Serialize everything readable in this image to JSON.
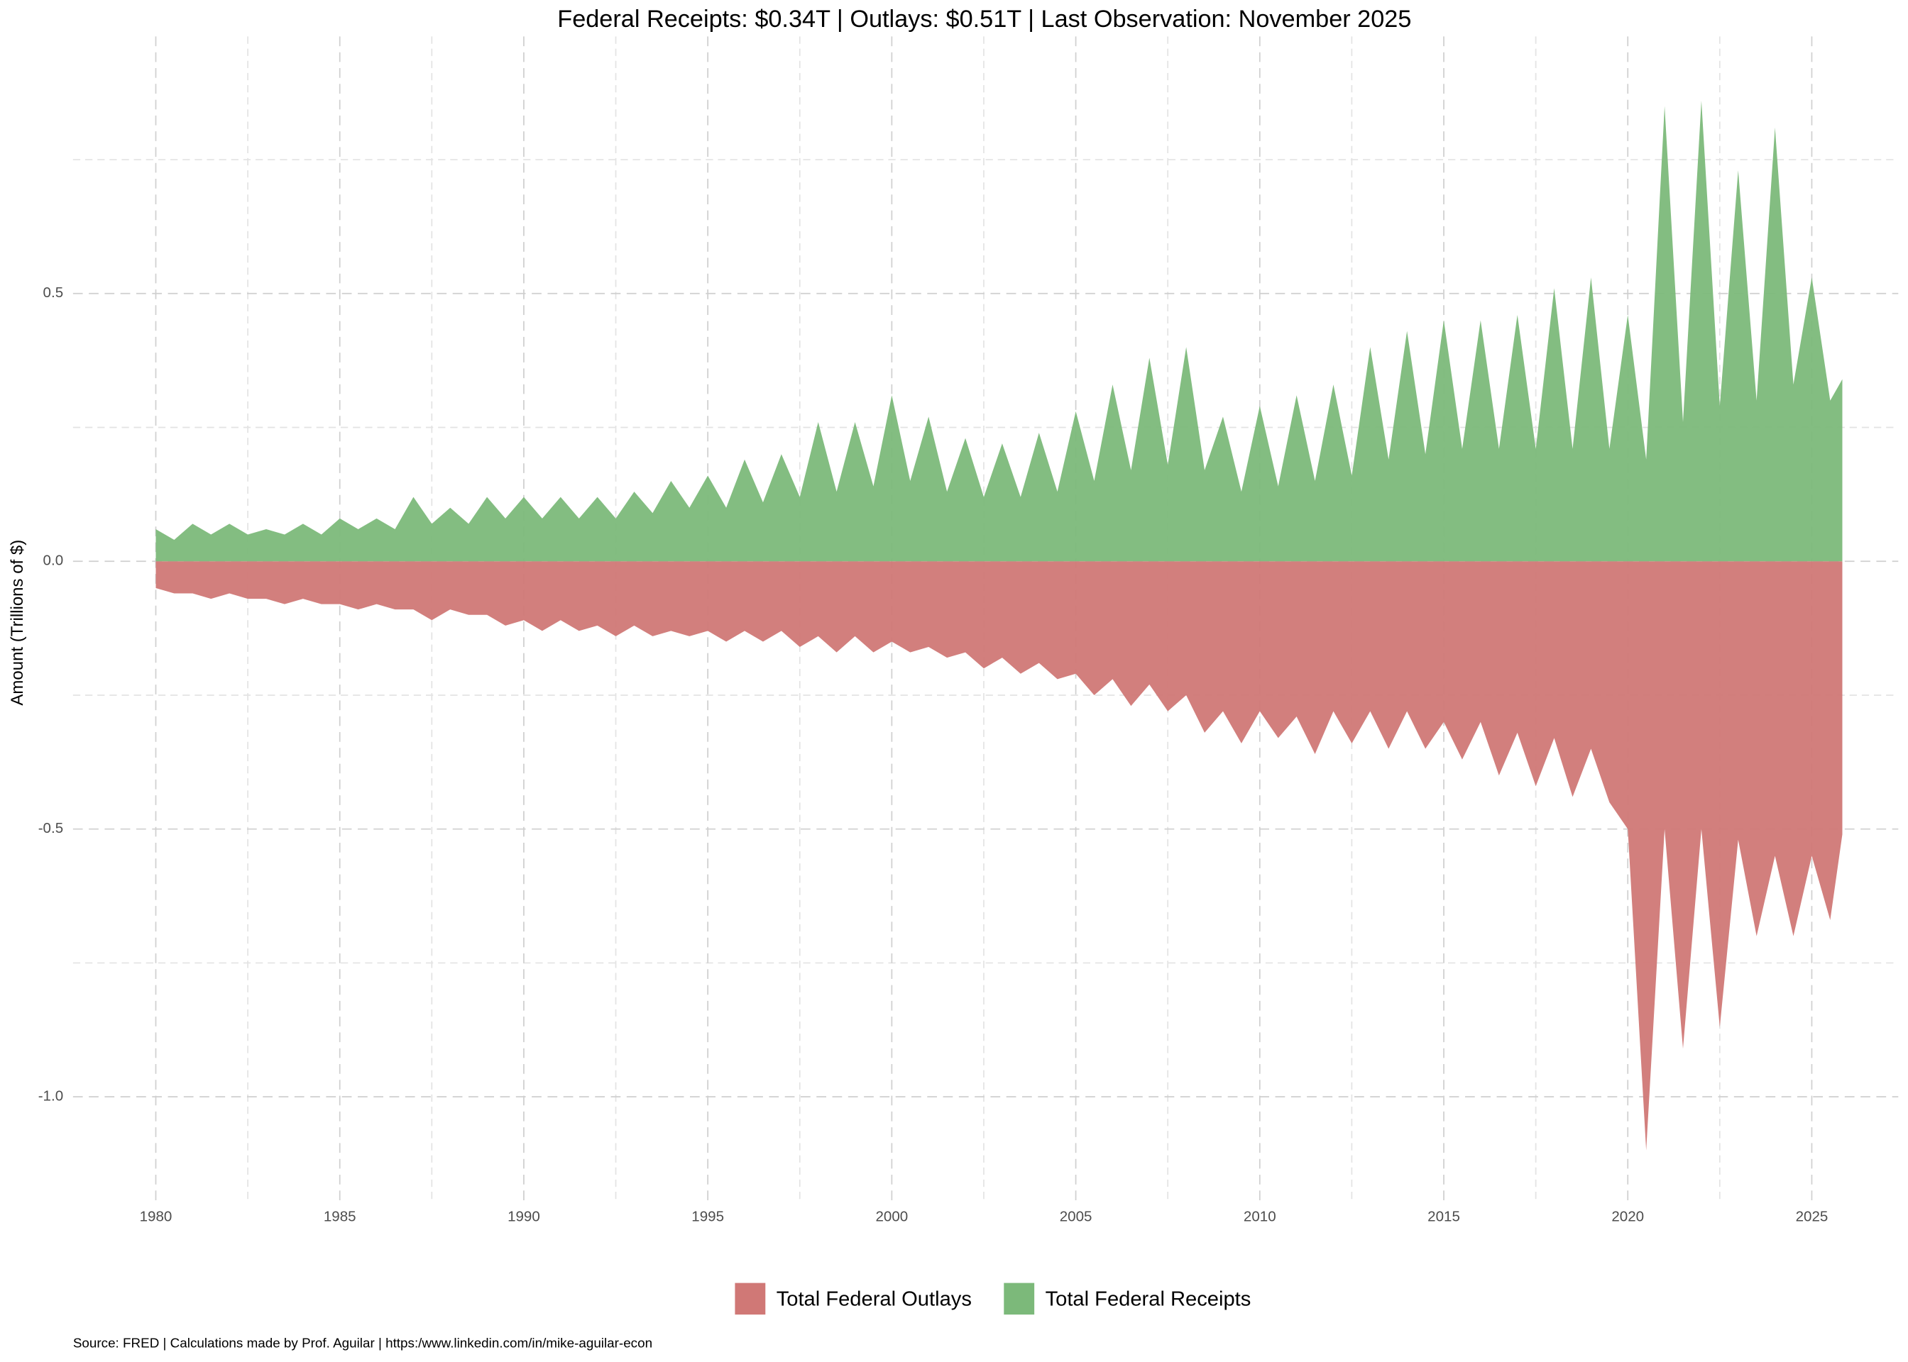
{
  "chart_data": {
    "type": "area",
    "title": "Federal Receipts: $0.34T | Outlays: $0.51T | Last Observation: November 2025",
    "y_label": "Amount (Trillions of $)",
    "caption": "Source: FRED | Calculations made by Prof. Aguilar | https:/www.linkedin.com/in/mike-aguilar-econ",
    "xlim": [
      1977.75,
      2027.35
    ],
    "ylim": [
      -1.2,
      0.98
    ],
    "xticks": [
      1980,
      1985,
      1990,
      1995,
      2000,
      2005,
      2010,
      2015,
      2020,
      2025
    ],
    "xminor": [
      1982.5,
      1987.5,
      1992.5,
      1997.5,
      2002.5,
      2007.5,
      2012.5,
      2017.5,
      2022.5
    ],
    "yticks": [
      {
        "value": -1,
        "label": "-1.0"
      },
      -0.5,
      {
        "value": 0,
        "label": "0.0"
      },
      0.5
    ],
    "yminor": [
      -0.75,
      -0.25,
      0.25,
      0.75
    ],
    "grid": true,
    "legend": "bottom",
    "x": [
      1980,
      1980.5,
      1981,
      1981.5,
      1982,
      1982.5,
      1983,
      1983.5,
      1984,
      1984.5,
      1985,
      1985.5,
      1986,
      1986.5,
      1987,
      1987.5,
      1988,
      1988.5,
      1989,
      1989.5,
      1990,
      1990.5,
      1991,
      1991.5,
      1992,
      1992.5,
      1993,
      1993.5,
      1994,
      1994.5,
      1995,
      1995.5,
      1996,
      1996.5,
      1997,
      1997.5,
      1998,
      1998.5,
      1999,
      1999.5,
      2000,
      2000.5,
      2001,
      2001.5,
      2002,
      2002.5,
      2003,
      2003.5,
      2004,
      2004.5,
      2005,
      2005.5,
      2006,
      2006.5,
      2007,
      2007.5,
      2008,
      2008.5,
      2009,
      2009.5,
      2010,
      2010.5,
      2011,
      2011.5,
      2012,
      2012.5,
      2013,
      2013.5,
      2014,
      2014.5,
      2015,
      2015.5,
      2016,
      2016.5,
      2017,
      2017.5,
      2018,
      2018.5,
      2019,
      2019.5,
      2020,
      2020.5,
      2021,
      2021.5,
      2022,
      2022.5,
      2023,
      2023.5,
      2024,
      2024.5,
      2025,
      2025.5,
      2025.83
    ],
    "series": [
      {
        "name": "Total Federal Outlays",
        "color": "#d07876",
        "values": [
          -0.05,
          -0.06,
          -0.06,
          -0.07,
          -0.06,
          -0.07,
          -0.07,
          -0.08,
          -0.07,
          -0.08,
          -0.08,
          -0.09,
          -0.08,
          -0.09,
          -0.09,
          -0.11,
          -0.09,
          -0.1,
          -0.1,
          -0.12,
          -0.11,
          -0.13,
          -0.11,
          -0.13,
          -0.12,
          -0.14,
          -0.12,
          -0.14,
          -0.13,
          -0.14,
          -0.13,
          -0.15,
          -0.13,
          -0.15,
          -0.13,
          -0.16,
          -0.14,
          -0.17,
          -0.14,
          -0.17,
          -0.15,
          -0.17,
          -0.16,
          -0.18,
          -0.17,
          -0.2,
          -0.18,
          -0.21,
          -0.19,
          -0.22,
          -0.21,
          -0.25,
          -0.22,
          -0.27,
          -0.23,
          -0.28,
          -0.25,
          -0.32,
          -0.28,
          -0.34,
          -0.28,
          -0.33,
          -0.29,
          -0.36,
          -0.28,
          -0.34,
          -0.28,
          -0.35,
          -0.28,
          -0.35,
          -0.3,
          -0.37,
          -0.3,
          -0.4,
          -0.32,
          -0.42,
          -0.33,
          -0.44,
          -0.35,
          -0.45,
          -0.5,
          -1.1,
          -0.5,
          -0.91,
          -0.5,
          -0.87,
          -0.52,
          -0.7,
          -0.55,
          -0.7,
          -0.55,
          -0.67,
          -0.51
        ]
      },
      {
        "name": "Total Federal Receipts",
        "color": "#7cb97a",
        "values": [
          0.06,
          0.04,
          0.07,
          0.05,
          0.07,
          0.05,
          0.06,
          0.05,
          0.07,
          0.05,
          0.08,
          0.06,
          0.08,
          0.06,
          0.12,
          0.07,
          0.1,
          0.07,
          0.12,
          0.08,
          0.12,
          0.08,
          0.12,
          0.08,
          0.12,
          0.08,
          0.13,
          0.09,
          0.15,
          0.1,
          0.16,
          0.1,
          0.19,
          0.11,
          0.2,
          0.12,
          0.26,
          0.13,
          0.26,
          0.14,
          0.31,
          0.15,
          0.27,
          0.13,
          0.23,
          0.12,
          0.22,
          0.12,
          0.24,
          0.13,
          0.28,
          0.15,
          0.33,
          0.17,
          0.38,
          0.18,
          0.4,
          0.17,
          0.27,
          0.13,
          0.29,
          0.14,
          0.31,
          0.15,
          0.33,
          0.16,
          0.4,
          0.19,
          0.43,
          0.2,
          0.45,
          0.21,
          0.45,
          0.21,
          0.46,
          0.21,
          0.51,
          0.21,
          0.53,
          0.21,
          0.46,
          0.19,
          0.85,
          0.26,
          0.86,
          0.29,
          0.73,
          0.3,
          0.81,
          0.33,
          0.53,
          0.3,
          0.34
        ]
      }
    ]
  }
}
